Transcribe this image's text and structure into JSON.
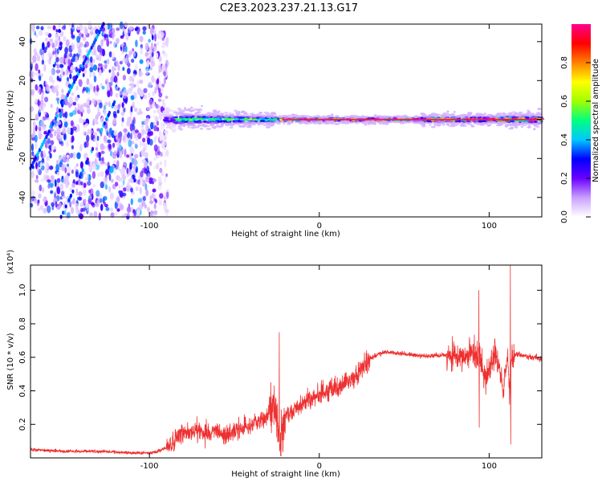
{
  "title": "C2E3.2023.237.21.13.G17",
  "colors": {
    "snr_line": "#ee3030",
    "axis": "#000000"
  },
  "chart_data": [
    {
      "type": "heatmap",
      "xlabel": "Height of straight line (km)",
      "ylabel": "Frequency (Hz)",
      "xlim": [
        -170,
        131
      ],
      "ylim": [
        -50,
        49
      ],
      "x_ticks": [
        -100,
        0,
        100
      ],
      "y_ticks": [
        40,
        20,
        0,
        -20,
        -40
      ],
      "grid": false,
      "colorbar": {
        "label": "Normalized spectral amplitude",
        "range": [
          0,
          1
        ],
        "ticks": [
          0.0,
          0.2,
          0.4,
          0.6,
          0.8
        ],
        "colormap": [
          "#ffffff",
          "#c9a0ff",
          "#6a00ff",
          "#0000ff",
          "#00c8ff",
          "#00ff80",
          "#a0ff00",
          "#ffff00",
          "#ff8000",
          "#ff0000",
          "#ff0090"
        ]
      },
      "features": {
        "noise_region_x": [
          -170,
          -92
        ],
        "carrier_frequency_hz": 0,
        "carrier_start_x": -92,
        "tilted_tone_x": [
          -170,
          -127
        ],
        "tilted_tone_freq": [
          -25,
          49
        ],
        "tilted_tone2_x": [
          -152,
          -120
        ],
        "tilted_tone2_freq": [
          -50,
          10
        ]
      }
    },
    {
      "type": "line",
      "xlabel": "Height of straight line (km)",
      "ylabel": "SNR (10 * v/v)",
      "y_multiplier": "(x10⁴)",
      "xlim": [
        -170,
        131
      ],
      "ylim": [
        0,
        1.15
      ],
      "x_ticks": [
        -100,
        0,
        100
      ],
      "y_ticks": [
        0.2,
        0.4,
        0.6,
        0.8,
        1.0
      ],
      "y_tick_labels": [
        "0.2",
        "0.4",
        "0.6",
        "0.8",
        "1.0"
      ],
      "grid": false,
      "series": [
        {
          "x": [
            -170,
            -150,
            -130,
            -110,
            -100,
            -95,
            -90,
            -85,
            -80,
            -75,
            -70,
            -65,
            -60,
            -55,
            -50,
            -45,
            -40,
            -35,
            -30,
            -27,
            -25,
            -24,
            -23,
            -20,
            -15,
            -10,
            -5,
            0,
            5,
            10,
            15,
            20,
            25,
            30,
            35,
            40,
            50,
            60,
            70,
            80,
            85,
            90,
            95,
            98,
            100,
            103,
            106,
            108,
            110,
            111,
            112,
            113,
            115,
            120,
            125,
            131
          ],
          "y": [
            0.05,
            0.04,
            0.04,
            0.03,
            0.03,
            0.04,
            0.06,
            0.1,
            0.15,
            0.16,
            0.17,
            0.14,
            0.15,
            0.13,
            0.16,
            0.18,
            0.19,
            0.22,
            0.25,
            0.33,
            0.23,
            0.12,
            0.1,
            0.25,
            0.28,
            0.32,
            0.35,
            0.38,
            0.4,
            0.42,
            0.45,
            0.48,
            0.53,
            0.59,
            0.62,
            0.63,
            0.62,
            0.61,
            0.61,
            0.62,
            0.6,
            0.63,
            0.58,
            0.45,
            0.55,
            0.6,
            0.56,
            0.4,
            0.55,
            0.6,
            0.38,
            0.58,
            0.62,
            0.61,
            0.6,
            0.59
          ]
        }
      ],
      "features": {
        "spike_max": [
          112.5,
          1.15
        ],
        "spike_min": [
          112.5,
          0.08
        ],
        "spike2_max": [
          -23.5,
          0.75
        ],
        "spike2_min": [
          -23.5,
          0.04
        ],
        "spike3_max": [
          94,
          1.0
        ],
        "spike3_min": [
          94,
          0.18
        ]
      }
    }
  ]
}
